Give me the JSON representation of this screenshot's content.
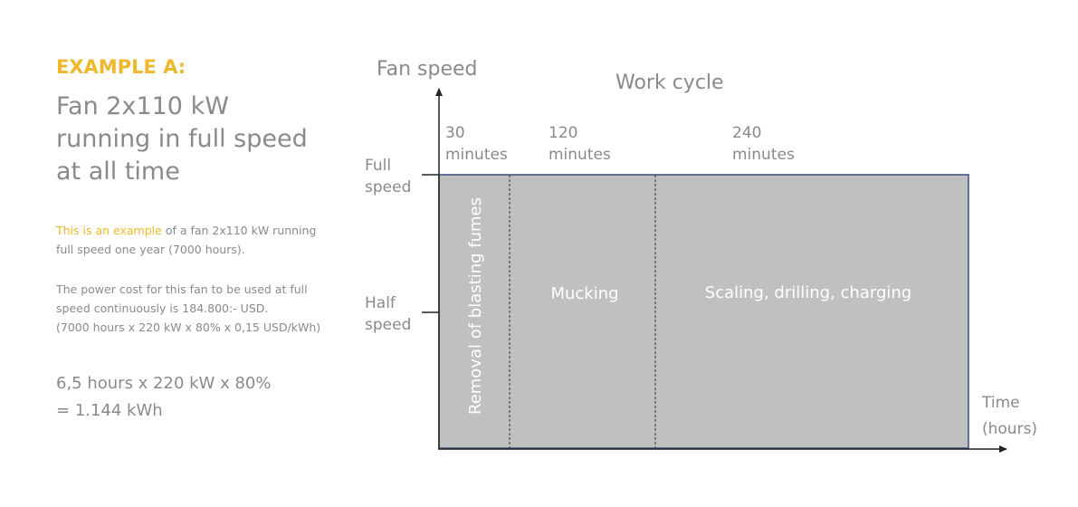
{
  "slide": {
    "example_title": "EXAMPLE A:",
    "headline": [
      "Fan 2x110 kW",
      "running in full speed",
      "at all time"
    ],
    "para1": {
      "highlight": "This is an example",
      "rest_line1": " of a fan 2x110 kW running",
      "line2": "full speed one year (7000 hours)."
    },
    "para2": [
      "The power cost for this fan to be used at full",
      "speed continuously is 184.800:- USD.",
      "(7000 hours x 220 kW x 80% x 0,15 USD/kWh)"
    ],
    "formula": [
      "6,5 hours x 220 kW x 80%",
      "= 1.144 kWh"
    ]
  },
  "diagram": {
    "y_axis_label": "Fan speed",
    "title": "Work cycle",
    "y_levels": {
      "full": [
        "Full",
        "speed"
      ],
      "half": [
        "Half",
        "speed"
      ]
    },
    "x_axis_label": [
      "Time",
      "(hours)"
    ],
    "phases": [
      {
        "duration_min": 30,
        "duration_label": [
          "30",
          "minutes"
        ],
        "label": "Removal of  blasting fumes"
      },
      {
        "duration_min": 120,
        "duration_label": [
          "120",
          "minutes"
        ],
        "label": "Mucking"
      },
      {
        "duration_min": 240,
        "duration_label": [
          "240",
          "minutes"
        ],
        "label": "Scaling, drilling, charging"
      }
    ],
    "colors": {
      "fill": "#c0c0c0",
      "border": "#3a4a7a",
      "axis": "#222222",
      "text": "#8a8a8a",
      "accent": "#f0b82c"
    }
  }
}
